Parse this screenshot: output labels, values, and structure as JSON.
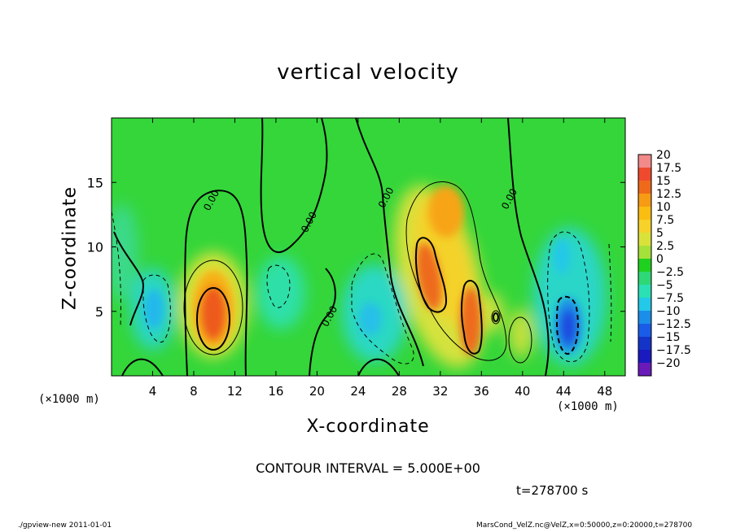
{
  "chart_data": {
    "type": "heatmap",
    "title": "vertical velocity",
    "xlabel": "X-coordinate",
    "ylabel": "Z-coordinate",
    "x_unit": "(×1000 m)",
    "xlim": [
      0,
      50
    ],
    "ylim": [
      0,
      20
    ],
    "x_ticks": [
      4,
      8,
      12,
      16,
      20,
      24,
      28,
      32,
      36,
      40,
      44,
      48
    ],
    "y_ticks": [
      5,
      10,
      15
    ],
    "colorbar": {
      "levels": [
        "20",
        "17.5",
        "15",
        "12.5",
        "10",
        "7.5",
        "5",
        "2.5",
        "0",
        "-2.5",
        "-5",
        "-7.5",
        "-10",
        "-12.5",
        "-15",
        "-17.5",
        "-20"
      ],
      "colors": [
        "#f28a8a",
        "#ef4a2e",
        "#ee6a1a",
        "#f79a14",
        "#fbbd12",
        "#f6d22a",
        "#d9e23a",
        "#a6e03a",
        "#1fd11f",
        "#2ed876",
        "#2ae0b4",
        "#24c8e8",
        "#1a8ee8",
        "#1a5ce8",
        "#1434c8",
        "#1a1abf",
        "#6a1ab8"
      ]
    },
    "contour_labels": [
      {
        "x": 10,
        "z": 13.5,
        "text": "0.00"
      },
      {
        "x": 19.5,
        "z": 11.8,
        "text": "0.00"
      },
      {
        "x": 21.5,
        "z": 4.5,
        "text": "0.00"
      },
      {
        "x": 27,
        "z": 13.7,
        "text": "0.00"
      },
      {
        "x": 39,
        "z": 13.6,
        "text": "0.00"
      }
    ],
    "features": [
      {
        "x": 10.2,
        "z": 5.3,
        "w_max": 12.5,
        "sign": "up"
      },
      {
        "x": 30.5,
        "z": 8.8,
        "w_max": 12.5,
        "sign": "up"
      },
      {
        "x": 34.5,
        "z": 5.0,
        "w_max": 12.5,
        "sign": "up"
      },
      {
        "x": 31.5,
        "z": 11.0,
        "w_max": 7.5,
        "sign": "up"
      },
      {
        "x": 44.5,
        "z": 4.0,
        "w_max": -12.5,
        "sign": "down"
      },
      {
        "x": 4.0,
        "z": 5.5,
        "w_max": -7.5,
        "sign": "down"
      },
      {
        "x": 25.0,
        "z": 5.0,
        "w_max": -7.5,
        "sign": "down"
      }
    ],
    "contour_interval_text": "CONTOUR INTERVAL = 5.000E+00",
    "time_text": "t=278700 s"
  },
  "footer": {
    "left": "./gpview-new  2011-01-01",
    "right": "MarsCond_VelZ.nc@VelZ,x=0:50000,z=0:20000,t=278700"
  }
}
